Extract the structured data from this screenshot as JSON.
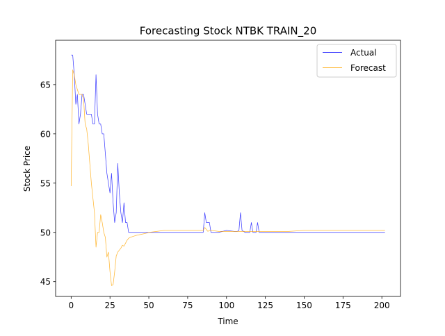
{
  "chart_data": {
    "type": "line",
    "title": "Forecasting Stock NTBK TRAIN_20",
    "xlabel": "Time",
    "ylabel": "Stock Price",
    "xlim": [
      -10,
      212
    ],
    "ylim": [
      43.5,
      69.5
    ],
    "xticks": [
      0,
      25,
      50,
      75,
      100,
      125,
      150,
      175,
      200
    ],
    "yticks": [
      45,
      50,
      55,
      60,
      65
    ],
    "grid": false,
    "legend_position": "top-right",
    "series": [
      {
        "name": "Actual",
        "color": "#0000ff",
        "x": [
          0,
          1,
          2,
          3,
          4,
          5,
          6,
          7,
          8,
          9,
          10,
          11,
          12,
          13,
          14,
          15,
          16,
          17,
          18,
          19,
          20,
          21,
          22,
          23,
          24,
          25,
          26,
          27,
          28,
          29,
          30,
          31,
          32,
          33,
          34,
          35,
          36,
          37,
          38,
          40,
          45,
          50,
          60,
          70,
          80,
          85,
          86,
          87,
          88,
          89,
          90,
          95,
          100,
          105,
          107,
          108,
          109,
          110,
          112,
          114,
          115,
          116,
          117,
          118,
          119,
          120,
          121,
          122,
          125,
          130,
          140,
          150,
          160,
          170,
          180,
          190,
          202
        ],
        "y": [
          68,
          68,
          66,
          63,
          64,
          61,
          62,
          64,
          64,
          63,
          62,
          62,
          62,
          62,
          61,
          61,
          66,
          62,
          61,
          61,
          60,
          60,
          58,
          56,
          55,
          54,
          56,
          53,
          51,
          52,
          57,
          54,
          52,
          51,
          53,
          51,
          51,
          50,
          50,
          50,
          50,
          50,
          50,
          50,
          50,
          50,
          52,
          51,
          51,
          51,
          50,
          50,
          50.2,
          50.1,
          50.1,
          50.2,
          52,
          50.2,
          50,
          50,
          50,
          51,
          50,
          50,
          50,
          51,
          50,
          50,
          50,
          50,
          50,
          50,
          50,
          50,
          50,
          50,
          50
        ]
      },
      {
        "name": "Forecast",
        "color": "#ffa500",
        "x": [
          0,
          1,
          2,
          3,
          4,
          5,
          6,
          7,
          8,
          9,
          10,
          11,
          12,
          13,
          14,
          15,
          16,
          17,
          18,
          19,
          20,
          21,
          22,
          23,
          24,
          25,
          26,
          27,
          28,
          29,
          30,
          31,
          32,
          33,
          34,
          35,
          36,
          37,
          38,
          40,
          42,
          45,
          48,
          50,
          55,
          60,
          70,
          80,
          85,
          86,
          87,
          88,
          89,
          90,
          95,
          100,
          105,
          110,
          115,
          120,
          125,
          130,
          140,
          150,
          160,
          170,
          180,
          190,
          202
        ],
        "y": [
          54.7,
          66.5,
          66,
          65,
          64.5,
          64,
          64,
          64,
          63.5,
          61,
          60.5,
          59,
          57,
          55,
          53.5,
          52,
          48.5,
          50,
          50,
          51.8,
          51,
          50,
          49.5,
          47.5,
          48,
          46,
          44.6,
          44.7,
          46,
          47.6,
          48,
          48.2,
          48.4,
          48.7,
          48.6,
          48.9,
          49.2,
          49.4,
          49.5,
          49.6,
          49.7,
          49.8,
          49.9,
          50,
          50.1,
          50.2,
          50.2,
          50.2,
          50.2,
          50.5,
          50.3,
          50.1,
          50.2,
          50.2,
          50.1,
          50.1,
          50.1,
          50.1,
          50.1,
          50.1,
          50.1,
          50.1,
          50.1,
          50.2,
          50.2,
          50.2,
          50.2,
          50.2,
          50.2
        ]
      }
    ]
  }
}
